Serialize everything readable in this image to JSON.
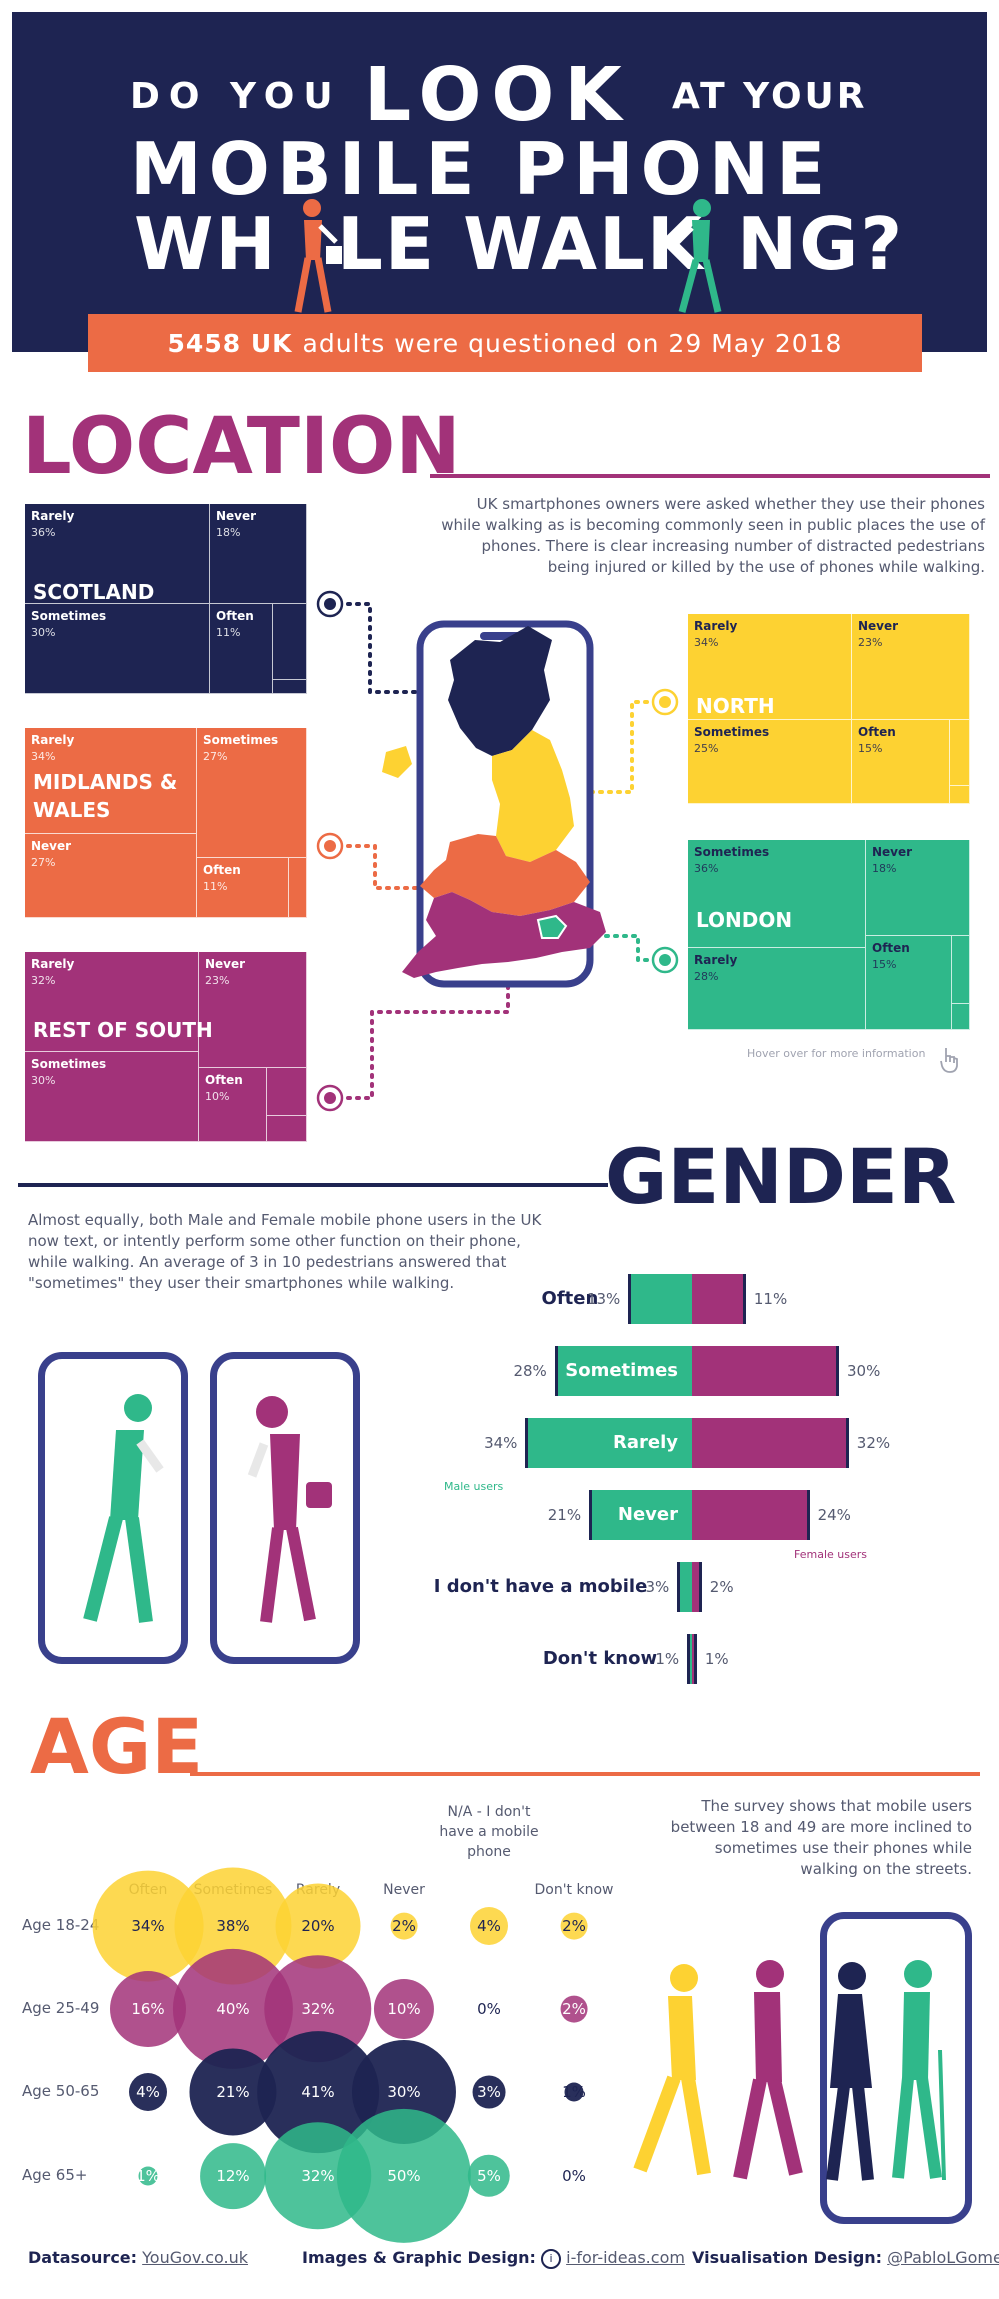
{
  "header": {
    "line1_a": "DO YOU",
    "line1_b": "LOOK",
    "line1_c": "AT YOUR",
    "line2": "MOBILE PHONE",
    "line3_a": "WH",
    "line3_b": "LE WALK",
    "line3_c": "NG?",
    "subtitle_count": "5458 UK",
    "subtitle_rest": "adults were questioned on 29 May 2018"
  },
  "location": {
    "title": "LOCATION",
    "description": "UK smartphones owners were asked whether they use their phones while walking as is becoming commonly seen in public places the use of phones. There is clear increasing number of distracted pedestrians being injured or killed by the use of phones while walking.",
    "hover_hint": "Hover over for more information",
    "regions": [
      {
        "name": "SCOTLAND",
        "color": "#1e2452",
        "cells": [
          {
            "label": "Rarely",
            "value": "36%"
          },
          {
            "label": "Never",
            "value": "18%"
          },
          {
            "label": "Sometimes",
            "value": "30%"
          },
          {
            "label": "Often",
            "value": "11%"
          }
        ]
      },
      {
        "name": "MIDLANDS & WALES",
        "name_l1": "MIDLANDS &",
        "name_l2": "WALES",
        "color": "#ec6b45",
        "cells": [
          {
            "label": "Rarely",
            "value": "34%"
          },
          {
            "label": "Sometimes",
            "value": "27%"
          },
          {
            "label": "Never",
            "value": "27%"
          },
          {
            "label": "Often",
            "value": "11%"
          }
        ]
      },
      {
        "name": "REST OF SOUTH",
        "color": "#a23279",
        "cells": [
          {
            "label": "Rarely",
            "value": "32%"
          },
          {
            "label": "Never",
            "value": "23%"
          },
          {
            "label": "Sometimes",
            "value": "30%"
          },
          {
            "label": "Often",
            "value": "10%"
          }
        ]
      },
      {
        "name": "NORTH",
        "color": "#fdd232",
        "cells": [
          {
            "label": "Rarely",
            "value": "34%"
          },
          {
            "label": "Never",
            "value": "23%"
          },
          {
            "label": "Sometimes",
            "value": "25%"
          },
          {
            "label": "Often",
            "value": "15%"
          }
        ]
      },
      {
        "name": "LONDON",
        "color": "#2fb88a",
        "cells": [
          {
            "label": "Sometimes",
            "value": "36%"
          },
          {
            "label": "Never",
            "value": "18%"
          },
          {
            "label": "Rarely",
            "value": "28%"
          },
          {
            "label": "Often",
            "value": "15%"
          }
        ]
      }
    ]
  },
  "gender": {
    "title": "GENDER",
    "description": "Almost equally, both Male and Female mobile phone users in the UK now text, or intently perform some other function on their phone, while walking. An average of 3 in 10 pedestrians answered that \"sometimes\" they user their smartphones while walking.",
    "male_label": "Male users",
    "female_label": "Female users"
  },
  "age": {
    "title": "AGE",
    "description": "The survey shows that mobile users between 18 and 49 are more inclined to sometimes use their phones while walking on the streets."
  },
  "footer": {
    "datasource_label": "Datasource:",
    "datasource_link": "YouGov.co.uk",
    "images_label": "Images & Graphic Design:",
    "images_link": "i-for-ideas.com",
    "vis_label": "Visualisation Design:",
    "vis_link": "@PabloLGomez"
  },
  "colors": {
    "navy": "#1e2452",
    "orange": "#ec6b45",
    "purple": "#a23279",
    "yellow": "#fdd232",
    "green": "#2fb88a"
  },
  "chart_data": [
    {
      "type": "bar",
      "categories": [
        "Often",
        "Sometimes",
        "Rarely",
        "Never",
        "I don't have a mobile",
        "Don't know"
      ],
      "series": [
        {
          "name": "Male users",
          "values": [
            13,
            28,
            34,
            21,
            3,
            1
          ],
          "labels": [
            "13%",
            "28%",
            "34%",
            "21%",
            "3%",
            "1%"
          ]
        },
        {
          "name": "Female users",
          "values": [
            11,
            30,
            32,
            24,
            2,
            1
          ],
          "labels": [
            "11%",
            "30%",
            "32%",
            "24%",
            "2%",
            "1%"
          ]
        }
      ],
      "legend": "inline"
    },
    {
      "type": "heatmap",
      "columns": [
        "Often",
        "Sometimes",
        "Rarely",
        "Never",
        "N/A - I don't have a mobile phone",
        "Don't know"
      ],
      "rows": [
        "Age 18-24",
        "Age 25-49",
        "Age 50-65",
        "Age 65+"
      ],
      "row_colors": [
        "#fdd232",
        "#a23279",
        "#1e2452",
        "#2fb88a"
      ],
      "values": [
        [
          34,
          38,
          20,
          2,
          4,
          2
        ],
        [
          16,
          40,
          32,
          10,
          0,
          2
        ],
        [
          4,
          21,
          41,
          30,
          3,
          1
        ],
        [
          1,
          12,
          32,
          50,
          5,
          0
        ]
      ],
      "labels": [
        [
          "34%",
          "38%",
          "20%",
          "2%",
          "4%",
          "2%"
        ],
        [
          "16%",
          "40%",
          "32%",
          "10%",
          "0%",
          "2%"
        ],
        [
          "4%",
          "21%",
          "41%",
          "30%",
          "3%",
          "1%"
        ],
        [
          "1%",
          "12%",
          "32%",
          "50%",
          "5%",
          "0%"
        ]
      ]
    }
  ]
}
